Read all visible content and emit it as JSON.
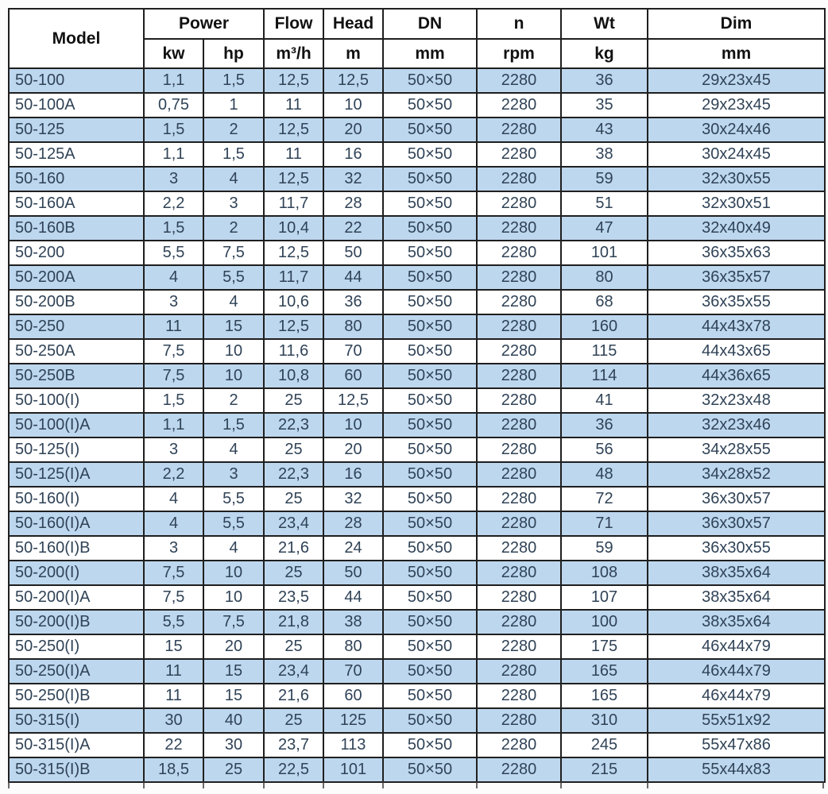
{
  "table": {
    "header": {
      "model": "Model",
      "power": "Power",
      "kw": "kw",
      "hp": "hp",
      "flow": "Flow",
      "flow_unit": "m³/h",
      "head": "Head",
      "head_unit": "m",
      "dn": "DN",
      "dn_unit": "mm",
      "n": "n",
      "n_unit": "rpm",
      "wt": "Wt",
      "wt_unit": "kg",
      "dim": "Dim",
      "dim_unit": "mm"
    },
    "rows": [
      [
        "50-100",
        "1,1",
        "1,5",
        "12,5",
        "12,5",
        "50×50",
        "2280",
        "36",
        "29x23x45"
      ],
      [
        "50-100A",
        "0,75",
        "1",
        "11",
        "10",
        "50×50",
        "2280",
        "35",
        "29x23x45"
      ],
      [
        "50-125",
        "1,5",
        "2",
        "12,5",
        "20",
        "50×50",
        "2280",
        "43",
        "30x24x46"
      ],
      [
        "50-125A",
        "1,1",
        "1,5",
        "11",
        "16",
        "50×50",
        "2280",
        "38",
        "30x24x45"
      ],
      [
        "50-160",
        "3",
        "4",
        "12,5",
        "32",
        "50×50",
        "2280",
        "59",
        "32x30x55"
      ],
      [
        "50-160A",
        "2,2",
        "3",
        "11,7",
        "28",
        "50×50",
        "2280",
        "51",
        "32x30x51"
      ],
      [
        "50-160B",
        "1,5",
        "2",
        "10,4",
        "22",
        "50×50",
        "2280",
        "47",
        "32x40x49"
      ],
      [
        "50-200",
        "5,5",
        "7,5",
        "12,5",
        "50",
        "50×50",
        "2280",
        "101",
        "36x35x63"
      ],
      [
        "50-200A",
        "4",
        "5,5",
        "11,7",
        "44",
        "50×50",
        "2280",
        "80",
        "36x35x57"
      ],
      [
        "50-200B",
        "3",
        "4",
        "10,6",
        "36",
        "50×50",
        "2280",
        "68",
        "36x35x55"
      ],
      [
        "50-250",
        "11",
        "15",
        "12,5",
        "80",
        "50×50",
        "2280",
        "160",
        "44x43x78"
      ],
      [
        "50-250A",
        "7,5",
        "10",
        "11,6",
        "70",
        "50×50",
        "2280",
        "115",
        "44x43x65"
      ],
      [
        "50-250B",
        "7,5",
        "10",
        "10,8",
        "60",
        "50×50",
        "2280",
        "114",
        "44x36x65"
      ],
      [
        "50-100(I)",
        "1,5",
        "2",
        "25",
        "12,5",
        "50×50",
        "2280",
        "41",
        "32x23x48"
      ],
      [
        "50-100(I)A",
        "1,1",
        "1,5",
        "22,3",
        "10",
        "50×50",
        "2280",
        "36",
        "32x23x46"
      ],
      [
        "50-125(I)",
        "3",
        "4",
        "25",
        "20",
        "50×50",
        "2280",
        "56",
        "34x28x55"
      ],
      [
        "50-125(I)A",
        "2,2",
        "3",
        "22,3",
        "16",
        "50×50",
        "2280",
        "48",
        "34x28x52"
      ],
      [
        "50-160(I)",
        "4",
        "5,5",
        "25",
        "32",
        "50×50",
        "2280",
        "72",
        "36x30x57"
      ],
      [
        "50-160(I)A",
        "4",
        "5,5",
        "23,4",
        "28",
        "50×50",
        "2280",
        "71",
        "36x30x57"
      ],
      [
        "50-160(I)B",
        "3",
        "4",
        "21,6",
        "24",
        "50×50",
        "2280",
        "59",
        "36x30x55"
      ],
      [
        "50-200(I)",
        "7,5",
        "10",
        "25",
        "50",
        "50×50",
        "2280",
        "108",
        "38x35x64"
      ],
      [
        "50-200(I)A",
        "7,5",
        "10",
        "23,5",
        "44",
        "50×50",
        "2280",
        "107",
        "38x35x64"
      ],
      [
        "50-200(I)B",
        "5,5",
        "7,5",
        "21,8",
        "38",
        "50×50",
        "2280",
        "100",
        "38x35x64"
      ],
      [
        "50-250(I)",
        "15",
        "20",
        "25",
        "80",
        "50×50",
        "2280",
        "175",
        "46x44x79"
      ],
      [
        "50-250(I)A",
        "11",
        "15",
        "23,4",
        "70",
        "50×50",
        "2280",
        "165",
        "46x44x79"
      ],
      [
        "50-250(I)B",
        "11",
        "15",
        "21,6",
        "60",
        "50×50",
        "2280",
        "165",
        "46x44x79"
      ],
      [
        "50-315(I)",
        "30",
        "40",
        "25",
        "125",
        "50×50",
        "2280",
        "310",
        "55x51x92"
      ],
      [
        "50-315(I)A",
        "22",
        "30",
        "23,7",
        "113",
        "50×50",
        "2280",
        "245",
        "55x47x86"
      ],
      [
        "50-315(I)B",
        "18,5",
        "25",
        "22,5",
        "101",
        "50×50",
        "2280",
        "215",
        "55x44x83"
      ]
    ]
  },
  "colors": {
    "row_alt_bg": "#bdd7ee",
    "row_bg": "#ffffff",
    "grid_line": "#1f1f1f",
    "data_text": "#304357",
    "header_text": "#111111"
  }
}
